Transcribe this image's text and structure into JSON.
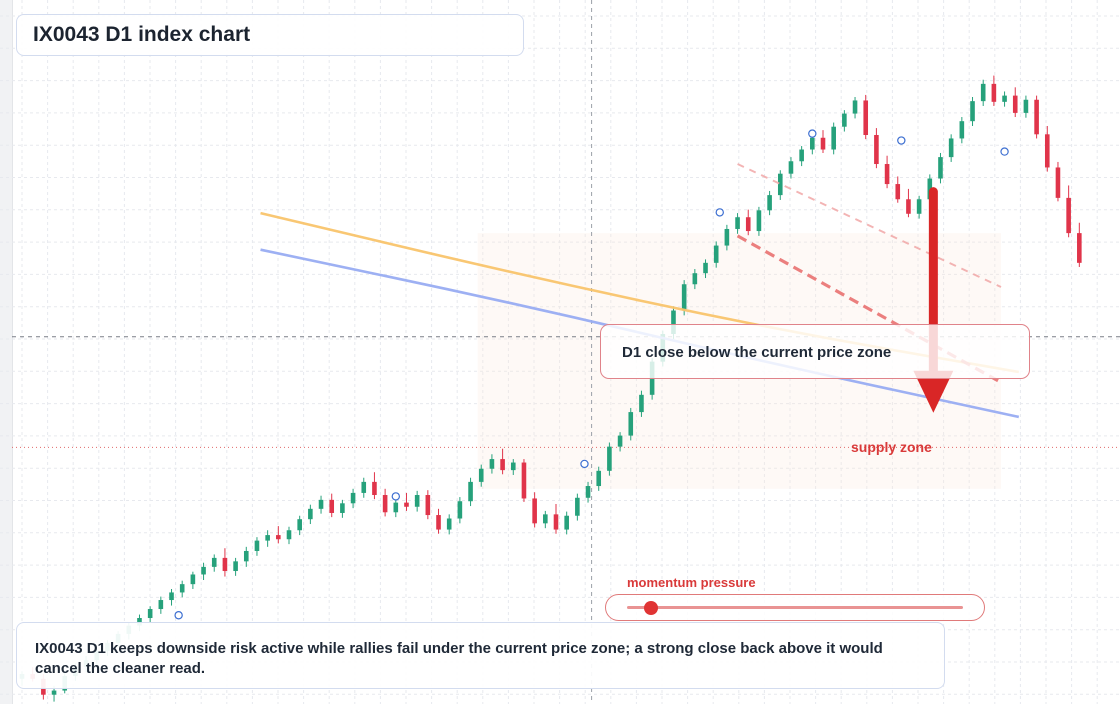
{
  "title": "IX0043 D1 index chart",
  "zone_label": "D1 close below the current price zone",
  "supply_label": "supply zone",
  "momentum": {
    "label": "momentum pressure",
    "level": 0.07
  },
  "summary": "IX0043 D1 keeps downside risk active while rallies fail under the current price zone; a strong close back above it would cancel the cleaner read.",
  "colors": {
    "up": "#26a17b",
    "down": "#e0344a",
    "ema_fast": "#f9c46b",
    "ema_slow": "#98acf2",
    "trend": "#e86a6a",
    "arrow": "#d92626",
    "marker": "#3d6fd1"
  },
  "chart_data": {
    "type": "candlestick",
    "xlim": [
      0,
      300
    ],
    "ylim": [
      0,
      100
    ],
    "grid": true,
    "crosshair": {
      "x": 160,
      "y": 53
    },
    "current_price_level": 37,
    "supply_zone": {
      "x": [
        128,
        275
      ],
      "y": [
        31,
        68
      ]
    },
    "candles": [
      [
        0,
        3.5,
        4.6,
        2.5,
        4.2
      ],
      [
        3,
        4.2,
        5.2,
        3.1,
        3.5
      ],
      [
        6,
        3.5,
        4.2,
        0.5,
        1.2
      ],
      [
        9,
        1.2,
        2.5,
        0.2,
        1.8
      ],
      [
        12,
        1.8,
        4.5,
        1.4,
        3.9
      ],
      [
        15,
        3.9,
        5.8,
        3.2,
        5.2
      ],
      [
        18,
        5.2,
        6.8,
        4.5,
        6.2
      ],
      [
        21,
        6.2,
        7.9,
        5.6,
        7.5
      ],
      [
        24,
        7.5,
        9.1,
        6.8,
        8.7
      ],
      [
        27,
        8.7,
        10.4,
        8.1,
        10.0
      ],
      [
        30,
        10.0,
        11.7,
        9.2,
        11.2
      ],
      [
        33,
        11.2,
        12.8,
        10.4,
        12.3
      ],
      [
        36,
        12.3,
        14.0,
        11.7,
        13.6
      ],
      [
        39,
        13.6,
        15.4,
        12.9,
        14.9
      ],
      [
        42,
        14.9,
        16.5,
        14.1,
        16.0
      ],
      [
        45,
        16.0,
        17.7,
        15.3,
        17.2
      ],
      [
        48,
        17.2,
        19.0,
        16.5,
        18.6
      ],
      [
        51,
        18.6,
        20.3,
        17.8,
        19.7
      ],
      [
        54,
        19.7,
        21.5,
        19.0,
        21.0
      ],
      [
        57,
        21.0,
        22.4,
        18.3,
        19.1
      ],
      [
        60,
        19.1,
        21.0,
        18.4,
        20.5
      ],
      [
        63,
        20.5,
        22.6,
        19.7,
        22.0
      ],
      [
        66,
        22.0,
        24.0,
        21.3,
        23.5
      ],
      [
        69,
        23.5,
        25.0,
        22.6,
        24.3
      ],
      [
        72,
        24.3,
        25.6,
        23.1,
        23.7
      ],
      [
        75,
        23.7,
        25.5,
        23.0,
        25.0
      ],
      [
        78,
        25.0,
        27.1,
        24.3,
        26.6
      ],
      [
        81,
        26.6,
        28.7,
        25.9,
        28.1
      ],
      [
        84,
        28.1,
        30.0,
        27.4,
        29.4
      ],
      [
        87,
        29.4,
        30.3,
        26.9,
        27.5
      ],
      [
        90,
        27.5,
        29.4,
        26.8,
        28.9
      ],
      [
        93,
        28.9,
        31.0,
        28.2,
        30.4
      ],
      [
        96,
        30.4,
        32.6,
        29.7,
        32.0
      ],
      [
        99,
        32.0,
        33.4,
        29.5,
        30.1
      ],
      [
        102,
        30.1,
        31.0,
        27.0,
        27.6
      ],
      [
        105,
        27.6,
        29.5,
        26.9,
        29.0
      ],
      [
        108,
        29.0,
        30.4,
        27.8,
        28.4
      ],
      [
        111,
        28.4,
        30.7,
        27.7,
        30.1
      ],
      [
        114,
        30.1,
        30.8,
        26.6,
        27.2
      ],
      [
        117,
        27.2,
        28.1,
        24.5,
        25.1
      ],
      [
        120,
        25.1,
        27.3,
        24.4,
        26.7
      ],
      [
        123,
        26.7,
        29.8,
        26.0,
        29.2
      ],
      [
        126,
        29.2,
        32.6,
        28.5,
        32.0
      ],
      [
        129,
        32.0,
        34.5,
        31.3,
        33.9
      ],
      [
        132,
        33.9,
        36.0,
        33.2,
        35.3
      ],
      [
        135,
        35.3,
        36.8,
        33.1,
        33.7
      ],
      [
        138,
        33.7,
        35.3,
        33.0,
        34.8
      ],
      [
        141,
        34.8,
        35.3,
        29.1,
        29.6
      ],
      [
        144,
        29.6,
        30.5,
        25.4,
        26.0
      ],
      [
        147,
        26.0,
        27.8,
        25.3,
        27.3
      ],
      [
        150,
        27.3,
        28.8,
        24.5,
        25.1
      ],
      [
        153,
        25.1,
        27.7,
        24.4,
        27.1
      ],
      [
        156,
        27.1,
        30.3,
        26.4,
        29.7
      ],
      [
        159,
        29.7,
        32.0,
        29.0,
        31.4
      ],
      [
        162,
        31.4,
        34.2,
        30.7,
        33.6
      ],
      [
        165,
        33.6,
        37.7,
        32.9,
        37.1
      ],
      [
        168,
        37.1,
        39.2,
        36.4,
        38.7
      ],
      [
        171,
        38.7,
        42.7,
        38.0,
        42.1
      ],
      [
        174,
        42.1,
        45.2,
        41.4,
        44.6
      ],
      [
        177,
        44.6,
        49.9,
        43.9,
        49.4
      ],
      [
        180,
        49.4,
        53.9,
        48.7,
        53.4
      ],
      [
        183,
        53.4,
        57.4,
        52.7,
        56.8
      ],
      [
        186,
        56.8,
        61.2,
        56.1,
        60.6
      ],
      [
        189,
        60.6,
        62.8,
        59.9,
        62.2
      ],
      [
        192,
        62.2,
        64.2,
        61.5,
        63.7
      ],
      [
        195,
        63.7,
        66.8,
        63.0,
        66.2
      ],
      [
        198,
        66.2,
        69.2,
        65.5,
        68.6
      ],
      [
        201,
        68.6,
        70.9,
        67.9,
        70.3
      ],
      [
        204,
        70.3,
        71.4,
        67.7,
        68.3
      ],
      [
        207,
        68.3,
        71.8,
        67.6,
        71.3
      ],
      [
        210,
        71.3,
        74.1,
        70.6,
        73.5
      ],
      [
        213,
        73.5,
        77.1,
        72.8,
        76.6
      ],
      [
        216,
        76.6,
        79.0,
        75.9,
        78.4
      ],
      [
        219,
        78.4,
        80.6,
        77.7,
        80.1
      ],
      [
        222,
        80.1,
        82.4,
        79.4,
        81.8
      ],
      [
        225,
        81.8,
        82.9,
        79.6,
        80.1
      ],
      [
        228,
        80.1,
        84.0,
        79.4,
        83.4
      ],
      [
        231,
        83.4,
        85.8,
        82.7,
        85.3
      ],
      [
        234,
        85.3,
        87.7,
        84.6,
        87.2
      ],
      [
        237,
        87.2,
        88.0,
        81.6,
        82.2
      ],
      [
        240,
        82.2,
        83.2,
        77.4,
        78.0
      ],
      [
        243,
        78.0,
        79.2,
        74.5,
        75.1
      ],
      [
        246,
        75.1,
        76.2,
        72.4,
        72.9
      ],
      [
        249,
        72.9,
        74.4,
        70.3,
        70.8
      ],
      [
        252,
        70.8,
        73.4,
        70.1,
        72.9
      ],
      [
        255,
        72.9,
        76.5,
        72.2,
        75.9
      ],
      [
        258,
        75.9,
        79.6,
        75.2,
        79.0
      ],
      [
        261,
        79.0,
        82.3,
        78.3,
        81.7
      ],
      [
        264,
        81.7,
        84.8,
        81.0,
        84.2
      ],
      [
        267,
        84.2,
        87.7,
        83.5,
        87.1
      ],
      [
        270,
        87.1,
        90.2,
        86.4,
        89.6
      ],
      [
        273,
        89.6,
        90.8,
        86.4,
        87.0
      ],
      [
        276,
        87.0,
        88.5,
        86.3,
        87.9
      ],
      [
        279,
        87.9,
        89.1,
        84.8,
        85.4
      ],
      [
        282,
        85.4,
        87.9,
        84.7,
        87.3
      ],
      [
        285,
        87.3,
        87.9,
        81.7,
        82.3
      ],
      [
        288,
        82.3,
        83.5,
        76.9,
        77.5
      ],
      [
        291,
        77.5,
        78.3,
        72.6,
        73.1
      ],
      [
        294,
        73.1,
        74.9,
        67.4,
        68.0
      ],
      [
        297,
        68.0,
        69.5,
        63.1,
        63.7
      ]
    ],
    "ema_fast": [
      [
        67,
        70.9
      ],
      [
        138,
        62.2
      ],
      [
        209,
        54.3
      ],
      [
        280,
        47.9
      ]
    ],
    "ema_slow": [
      [
        67,
        65.6
      ],
      [
        138,
        57.9
      ],
      [
        209,
        49.3
      ],
      [
        280,
        41.4
      ]
    ],
    "trendline_solid": [
      [
        201,
        67.6
      ],
      [
        275,
        46.4
      ]
    ],
    "trendline_dashed": [
      [
        201,
        78.0
      ],
      [
        275,
        60.2
      ]
    ],
    "arrow": {
      "x": 256,
      "from": 74,
      "to": 42
    },
    "markers": [
      [
        44,
        12.7
      ],
      [
        105,
        29.9
      ],
      [
        158,
        34.6
      ],
      [
        196,
        71.0
      ],
      [
        222,
        82.4
      ],
      [
        247,
        81.4
      ],
      [
        276,
        79.8
      ]
    ]
  }
}
